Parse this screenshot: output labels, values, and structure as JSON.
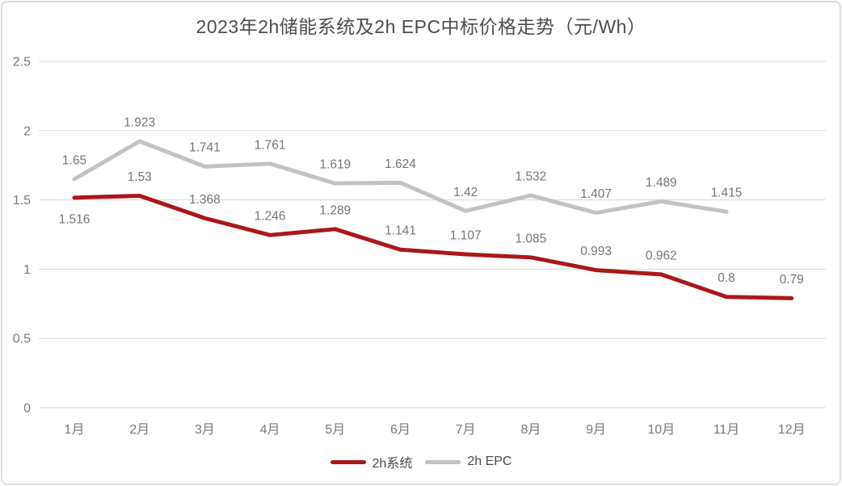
{
  "chart_data": {
    "type": "line",
    "title": "2023年2h储能系统及2h EPC中标价格走势（元/Wh）",
    "categories": [
      "1月",
      "2月",
      "3月",
      "4月",
      "5月",
      "6月",
      "7月",
      "8月",
      "9月",
      "10月",
      "11月",
      "12月"
    ],
    "series": [
      {
        "name": "2h系统",
        "color": "#ab1719",
        "values": [
          1.516,
          1.53,
          1.368,
          1.246,
          1.289,
          1.141,
          1.107,
          1.085,
          0.993,
          0.962,
          0.8,
          0.79
        ],
        "label_sides": [
          "below",
          "above",
          "above",
          "above",
          "above",
          "above",
          "above",
          "above",
          "above",
          "above",
          "above",
          "above"
        ]
      },
      {
        "name": "2h EPC",
        "color": "#c2c2c2",
        "values": [
          1.65,
          1.923,
          1.741,
          1.761,
          1.619,
          1.624,
          1.42,
          1.532,
          1.407,
          1.489,
          1.415
        ]
      }
    ],
    "xlabel": "",
    "ylabel": "",
    "ylim": [
      0,
      2.5
    ],
    "yticks": [
      0,
      0.5,
      1,
      1.5,
      2,
      2.5
    ],
    "grid": true,
    "legend_position": "bottom",
    "grid_color": "#d9d9d9",
    "tick_color": "#787878",
    "data_label_color": "#757575"
  }
}
